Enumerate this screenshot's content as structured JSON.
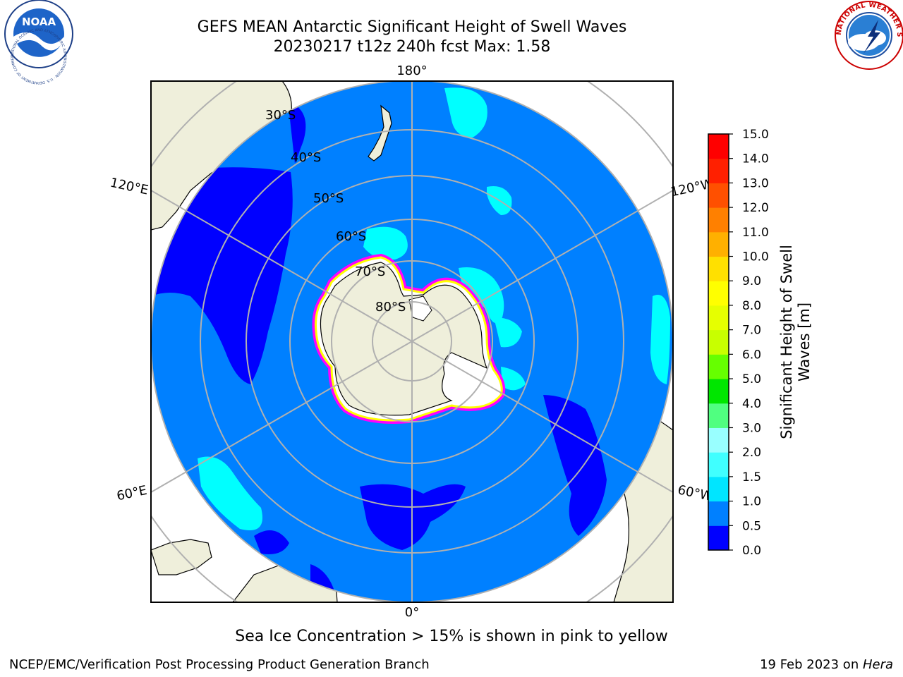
{
  "header": {
    "title_line1": "GEFS MEAN Antarctic Significant Height of Swell Waves",
    "title_line2": "20230217 t12z 240h fcst   Max: 1.58"
  },
  "logos": {
    "left": "NOAA",
    "left_ring_text": "NATIONAL OCEANIC AND ATMOSPHERIC ADMINISTRATION · U.S. DEPARTMENT OF COMMERCE",
    "right_ring_text": "NATIONAL WEATHER SERVICE"
  },
  "map": {
    "projection": "south-polar-stereographic",
    "longitude_labels": {
      "top": "180°",
      "bottom": "0°",
      "left_upper": "120°E",
      "left_lower": "60°E",
      "right_upper": "120°W",
      "right_lower": "60°W"
    },
    "latitude_labels": [
      "30°S",
      "40°S",
      "50°S",
      "60°S",
      "70°S",
      "80°S"
    ],
    "colors": {
      "ocean": "#0080ff",
      "land": "#efefdb",
      "low_swell": "#0000ff",
      "mid_swell": "#00ffff",
      "sea_ice_outer": "#ff00ff",
      "sea_ice_inner": "#ffff00",
      "grid": "#b0b0b0"
    }
  },
  "colorbar": {
    "label_line1": "Significant Height of Swell",
    "label_line2": "Waves [m]",
    "ticks": [
      "0.0",
      "0.5",
      "1.0",
      "1.5",
      "2.0",
      "3.0",
      "4.0",
      "5.0",
      "6.0",
      "7.0",
      "8.0",
      "9.0",
      "10.0",
      "11.0",
      "12.0",
      "13.0",
      "14.0",
      "15.0"
    ],
    "colors": [
      "#0000ff",
      "#0080ff",
      "#00e5ff",
      "#40ffff",
      "#99ffff",
      "#50ff80",
      "#00e600",
      "#66ff00",
      "#c8ff00",
      "#e6ff00",
      "#ffff00",
      "#ffe000",
      "#ffb000",
      "#ff8000",
      "#ff5000",
      "#ff2000",
      "#ff0000"
    ]
  },
  "note": "Sea Ice Concentration > 15% is shown in pink to yellow",
  "footer": {
    "left": "NCEP/EMC/Verification Post Processing Product Generation Branch",
    "right_prefix": "19 Feb 2023 on ",
    "right_host": "Hera"
  }
}
